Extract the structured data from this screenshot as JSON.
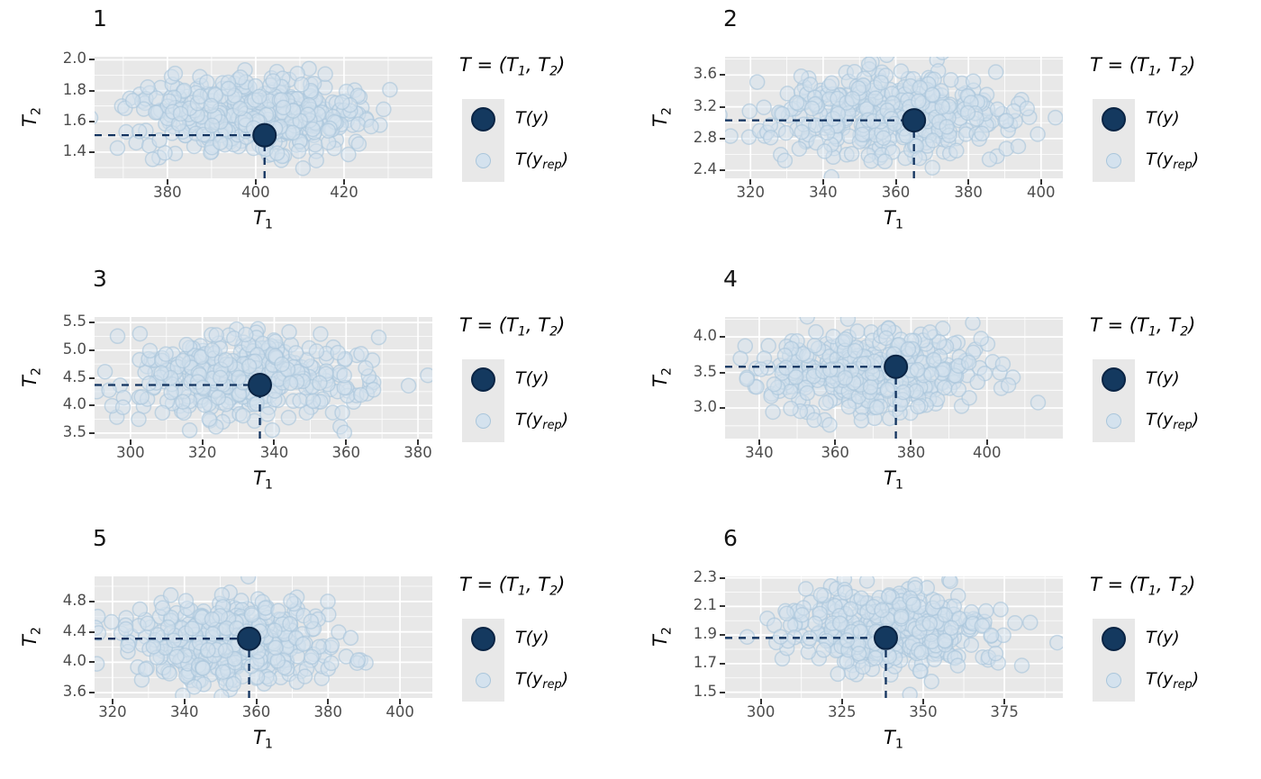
{
  "colors": {
    "background": "#ffffff",
    "panel_bg": "#e8e8e8",
    "grid": "#ffffff",
    "tick_mark": "#333333",
    "tick_label": "#4d4d4d",
    "text": "#000000",
    "rep_fill": "#d4e2ee",
    "rep_stroke": "#aac6db",
    "obs_fill": "#14395f",
    "obs_stroke": "#0a2444",
    "dash": "#12335f"
  },
  "axis": {
    "x_pre": "T",
    "x_sub": "1",
    "y_pre": "T",
    "y_sub": "2"
  },
  "legend": {
    "title_pre": "T = (T",
    "title_sub1": "1",
    "title_mid": ", T",
    "title_sub2": "2",
    "title_post": ")",
    "obs_label": "T(y)",
    "rep_pre": "T(y",
    "rep_sub": "rep",
    "rep_post": ")"
  },
  "chart_data": [
    {
      "type": "scatter",
      "title": "1",
      "xlabel": "T_1",
      "ylabel": "T_2",
      "legend_entries": [
        "T(y)",
        "T(y_rep)"
      ],
      "x_domain": [
        363.5,
        440
      ],
      "y_domain": [
        1.23,
        2.02
      ],
      "x_ticks": [
        {
          "v": 380,
          "label": "380"
        },
        {
          "v": 400,
          "label": "400"
        },
        {
          "v": 420,
          "label": "420"
        }
      ],
      "y_ticks": [
        {
          "v": 1.4,
          "label": "1.4"
        },
        {
          "v": 1.6,
          "label": "1.6"
        },
        {
          "v": 1.8,
          "label": "1.8"
        },
        {
          "v": 2.0,
          "label": "2.0"
        }
      ],
      "observed": {
        "x": 402,
        "y": 1.51
      },
      "rep": {
        "n": 430,
        "cx": 400.5,
        "cy": 1.63,
        "sx": 13,
        "sy": 0.125,
        "seed": 101
      }
    },
    {
      "type": "scatter",
      "title": "2",
      "xlabel": "T_1",
      "ylabel": "T_2",
      "legend_entries": [
        "T(y)",
        "T(y_rep)"
      ],
      "x_domain": [
        313,
        406
      ],
      "y_domain": [
        2.3,
        3.83
      ],
      "x_ticks": [
        {
          "v": 320,
          "label": "320"
        },
        {
          "v": 340,
          "label": "340"
        },
        {
          "v": 360,
          "label": "360"
        },
        {
          "v": 380,
          "label": "380"
        },
        {
          "v": 400,
          "label": "400"
        }
      ],
      "y_ticks": [
        {
          "v": 2.4,
          "label": "2.4"
        },
        {
          "v": 2.8,
          "label": "2.8"
        },
        {
          "v": 3.2,
          "label": "3.2"
        },
        {
          "v": 3.6,
          "label": "3.6"
        }
      ],
      "observed": {
        "x": 365,
        "y": 3.03
      },
      "rep": {
        "n": 430,
        "cx": 358,
        "cy": 3.1,
        "sx": 17,
        "sy": 0.27,
        "seed": 202
      }
    },
    {
      "type": "scatter",
      "title": "3",
      "xlabel": "T_1",
      "ylabel": "T_2",
      "legend_entries": [
        "T(y)",
        "T(y_rep)"
      ],
      "x_domain": [
        290,
        384
      ],
      "y_domain": [
        3.4,
        5.6
      ],
      "x_ticks": [
        {
          "v": 300,
          "label": "300"
        },
        {
          "v": 320,
          "label": "320"
        },
        {
          "v": 340,
          "label": "340"
        },
        {
          "v": 360,
          "label": "360"
        },
        {
          "v": 380,
          "label": "380"
        }
      ],
      "y_ticks": [
        {
          "v": 3.5,
          "label": "3.5"
        },
        {
          "v": 4.0,
          "label": "4.0"
        },
        {
          "v": 4.5,
          "label": "4.5"
        },
        {
          "v": 5.0,
          "label": "5.0"
        },
        {
          "v": 5.5,
          "label": "5.5"
        }
      ],
      "observed": {
        "x": 336,
        "y": 4.37
      },
      "rep": {
        "n": 430,
        "cx": 332,
        "cy": 4.55,
        "sx": 15,
        "sy": 0.37,
        "seed": 303
      }
    },
    {
      "type": "scatter",
      "title": "4",
      "xlabel": "T_1",
      "ylabel": "T_2",
      "legend_entries": [
        "T(y)",
        "T(y_rep)"
      ],
      "x_domain": [
        331,
        420
      ],
      "y_domain": [
        2.57,
        4.28
      ],
      "x_ticks": [
        {
          "v": 340,
          "label": "340"
        },
        {
          "v": 360,
          "label": "360"
        },
        {
          "v": 380,
          "label": "380"
        },
        {
          "v": 400,
          "label": "400"
        }
      ],
      "y_ticks": [
        {
          "v": 3.0,
          "label": "3.0"
        },
        {
          "v": 3.5,
          "label": "3.5"
        },
        {
          "v": 4.0,
          "label": "4.0"
        }
      ],
      "observed": {
        "x": 376,
        "y": 3.58
      },
      "rep": {
        "n": 430,
        "cx": 369,
        "cy": 3.52,
        "sx": 15,
        "sy": 0.3,
        "seed": 404
      }
    },
    {
      "type": "scatter",
      "title": "5",
      "xlabel": "T_1",
      "ylabel": "T_2",
      "legend_entries": [
        "T(y)",
        "T(y_rep)"
      ],
      "x_domain": [
        315,
        409
      ],
      "y_domain": [
        3.53,
        5.13
      ],
      "x_ticks": [
        {
          "v": 320,
          "label": "320"
        },
        {
          "v": 340,
          "label": "340"
        },
        {
          "v": 360,
          "label": "360"
        },
        {
          "v": 380,
          "label": "380"
        },
        {
          "v": 400,
          "label": "400"
        }
      ],
      "y_ticks": [
        {
          "v": 3.6,
          "label": "3.6"
        },
        {
          "v": 4.0,
          "label": "4.0"
        },
        {
          "v": 4.4,
          "label": "4.4"
        },
        {
          "v": 4.8,
          "label": "4.8"
        }
      ],
      "observed": {
        "x": 358,
        "y": 4.31
      },
      "rep": {
        "n": 430,
        "cx": 352,
        "cy": 4.28,
        "sx": 15,
        "sy": 0.27,
        "seed": 505
      }
    },
    {
      "type": "scatter",
      "title": "6",
      "xlabel": "T_1",
      "ylabel": "T_2",
      "legend_entries": [
        "T(y)",
        "T(y_rep)"
      ],
      "x_domain": [
        289,
        393
      ],
      "y_domain": [
        1.46,
        2.31
      ],
      "x_ticks": [
        {
          "v": 300,
          "label": "300"
        },
        {
          "v": 325,
          "label": "325"
        },
        {
          "v": 350,
          "label": "350"
        },
        {
          "v": 375,
          "label": "375"
        }
      ],
      "y_ticks": [
        {
          "v": 1.5,
          "label": "1.5"
        },
        {
          "v": 1.7,
          "label": "1.7"
        },
        {
          "v": 1.9,
          "label": "1.9"
        },
        {
          "v": 2.1,
          "label": "2.1"
        },
        {
          "v": 2.3,
          "label": "2.3"
        }
      ],
      "observed": {
        "x": 338.5,
        "y": 1.88
      },
      "rep": {
        "n": 430,
        "cx": 340,
        "cy": 1.93,
        "sx": 16,
        "sy": 0.15,
        "seed": 606
      }
    }
  ]
}
